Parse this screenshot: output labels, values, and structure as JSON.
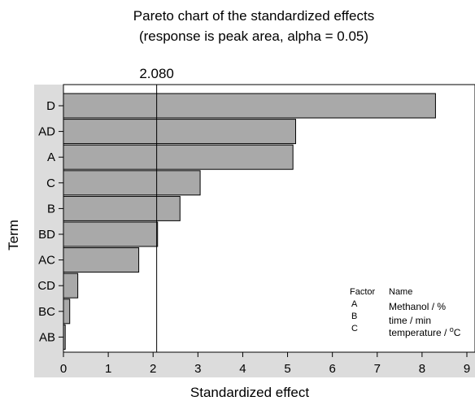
{
  "chart_data": {
    "type": "bar",
    "orientation": "horizontal",
    "title_line1": "Pareto chart of the standardized effects",
    "title_line2": "(response is peak area, alpha = 0.05)",
    "xlabel": "Standardized effect",
    "ylabel": "Term",
    "xlim": [
      0,
      9
    ],
    "x_ticks": [
      "0",
      "1",
      "2",
      "3",
      "4",
      "5",
      "6",
      "7",
      "8",
      "9"
    ],
    "categories": [
      "D",
      "AD",
      "A",
      "C",
      "B",
      "BD",
      "AC",
      "CD",
      "BC",
      "AB"
    ],
    "values": [
      8.3,
      5.18,
      5.12,
      3.05,
      2.6,
      2.1,
      1.68,
      0.32,
      0.14,
      0.04
    ],
    "reference_line": {
      "value": 2.08,
      "label": "2.080"
    },
    "legend": {
      "header_factor": "Factor",
      "header_name": "Name",
      "rows": [
        {
          "factor": "A",
          "name": "Methanol / %"
        },
        {
          "factor": "B",
          "name": "time / min"
        },
        {
          "factor": "C",
          "name": "temperature / ",
          "superscript": "o",
          "suffix": "C"
        }
      ]
    },
    "colors": {
      "bar": "#a9a9a9",
      "plot_bg": "#ffffff",
      "frame_bg": "#dcdcdc"
    }
  }
}
